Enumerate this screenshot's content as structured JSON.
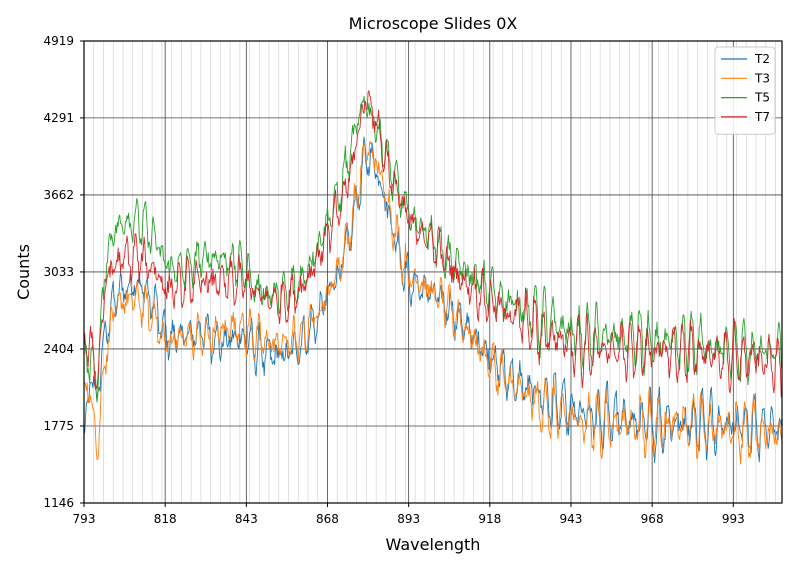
{
  "chart_data": {
    "type": "line",
    "title": "Microscope Slides 0X",
    "xlabel": "Wavelength",
    "ylabel": "Counts",
    "xlim": [
      793,
      1008
    ],
    "ylim": [
      1146,
      4919
    ],
    "xticks": [
      793,
      818,
      843,
      868,
      893,
      918,
      943,
      968,
      993
    ],
    "yticks": [
      1146,
      1775,
      2404,
      3033,
      3662,
      4291,
      4919
    ],
    "minor_grid_step": 3,
    "grid": true,
    "legend_position": "top-right",
    "series": [
      {
        "name": "T2",
        "color": "#1f77b4",
        "anchors": [
          [
            793,
            1680
          ],
          [
            795,
            2150
          ],
          [
            797,
            2020
          ],
          [
            800,
            2600
          ],
          [
            803,
            2850
          ],
          [
            806,
            2900
          ],
          [
            810,
            2950
          ],
          [
            815,
            2750
          ],
          [
            818,
            2500
          ],
          [
            822,
            2500
          ],
          [
            826,
            2520
          ],
          [
            830,
            2550
          ],
          [
            835,
            2450
          ],
          [
            840,
            2500
          ],
          [
            843,
            2500
          ],
          [
            846,
            2400
          ],
          [
            850,
            2350
          ],
          [
            855,
            2350
          ],
          [
            860,
            2450
          ],
          [
            865,
            2650
          ],
          [
            868,
            2850
          ],
          [
            872,
            3050
          ],
          [
            876,
            3450
          ],
          [
            879,
            3900
          ],
          [
            881,
            4000
          ],
          [
            884,
            3800
          ],
          [
            887,
            3500
          ],
          [
            890,
            3200
          ],
          [
            893,
            2950
          ],
          [
            897,
            2900
          ],
          [
            901,
            2850
          ],
          [
            905,
            2750
          ],
          [
            910,
            2600
          ],
          [
            915,
            2450
          ],
          [
            918,
            2350
          ],
          [
            923,
            2200
          ],
          [
            928,
            2100
          ],
          [
            933,
            2050
          ],
          [
            938,
            1950
          ],
          [
            943,
            1900
          ],
          [
            948,
            1850
          ],
          [
            953,
            1850
          ],
          [
            958,
            1850
          ],
          [
            963,
            1800
          ],
          [
            968,
            1800
          ],
          [
            973,
            1800
          ],
          [
            978,
            1800
          ],
          [
            983,
            1800
          ],
          [
            988,
            1800
          ],
          [
            993,
            1800
          ],
          [
            998,
            1780
          ],
          [
            1003,
            1760
          ],
          [
            1008,
            1750
          ]
        ]
      },
      {
        "name": "T3",
        "color": "#ff7f0e",
        "anchors": [
          [
            793,
            2100
          ],
          [
            795,
            2050
          ],
          [
            797,
            1600
          ],
          [
            800,
            2450
          ],
          [
            803,
            2750
          ],
          [
            806,
            2800
          ],
          [
            810,
            2800
          ],
          [
            815,
            2650
          ],
          [
            818,
            2450
          ],
          [
            822,
            2500
          ],
          [
            826,
            2500
          ],
          [
            830,
            2500
          ],
          [
            835,
            2550
          ],
          [
            840,
            2600
          ],
          [
            843,
            2550
          ],
          [
            846,
            2500
          ],
          [
            850,
            2450
          ],
          [
            855,
            2450
          ],
          [
            860,
            2500
          ],
          [
            865,
            2700
          ],
          [
            868,
            2850
          ],
          [
            872,
            3100
          ],
          [
            876,
            3500
          ],
          [
            879,
            3950
          ],
          [
            881,
            4050
          ],
          [
            884,
            3850
          ],
          [
            887,
            3550
          ],
          [
            890,
            3250
          ],
          [
            893,
            3000
          ],
          [
            897,
            2950
          ],
          [
            901,
            2850
          ],
          [
            905,
            2750
          ],
          [
            910,
            2600
          ],
          [
            915,
            2400
          ],
          [
            918,
            2300
          ],
          [
            923,
            2150
          ],
          [
            928,
            2050
          ],
          [
            933,
            1950
          ],
          [
            938,
            1900
          ],
          [
            943,
            1850
          ],
          [
            948,
            1800
          ],
          [
            953,
            1800
          ],
          [
            958,
            1800
          ],
          [
            963,
            1800
          ],
          [
            968,
            1780
          ],
          [
            973,
            1780
          ],
          [
            978,
            1780
          ],
          [
            983,
            1780
          ],
          [
            988,
            1760
          ],
          [
            993,
            1760
          ],
          [
            998,
            1740
          ],
          [
            1003,
            1720
          ],
          [
            1008,
            1700
          ]
        ]
      },
      {
        "name": "T5",
        "color": "#2ca02c",
        "anchors": [
          [
            793,
            2400
          ],
          [
            795,
            2300
          ],
          [
            797,
            2150
          ],
          [
            800,
            3200
          ],
          [
            803,
            3400
          ],
          [
            806,
            3450
          ],
          [
            810,
            3450
          ],
          [
            815,
            3300
          ],
          [
            818,
            3100
          ],
          [
            822,
            3050
          ],
          [
            826,
            3100
          ],
          [
            830,
            3150
          ],
          [
            835,
            3150
          ],
          [
            840,
            3100
          ],
          [
            843,
            3050
          ],
          [
            846,
            2900
          ],
          [
            850,
            2850
          ],
          [
            855,
            2850
          ],
          [
            860,
            2950
          ],
          [
            865,
            3250
          ],
          [
            868,
            3450
          ],
          [
            872,
            3700
          ],
          [
            876,
            4100
          ],
          [
            879,
            4450
          ],
          [
            881,
            4350
          ],
          [
            884,
            4150
          ],
          [
            887,
            3900
          ],
          [
            890,
            3700
          ],
          [
            893,
            3500
          ],
          [
            897,
            3400
          ],
          [
            901,
            3300
          ],
          [
            905,
            3150
          ],
          [
            910,
            3050
          ],
          [
            915,
            2950
          ],
          [
            918,
            2900
          ],
          [
            923,
            2800
          ],
          [
            928,
            2750
          ],
          [
            933,
            2650
          ],
          [
            938,
            2600
          ],
          [
            943,
            2550
          ],
          [
            948,
            2500
          ],
          [
            953,
            2500
          ],
          [
            958,
            2500
          ],
          [
            963,
            2500
          ],
          [
            968,
            2450
          ],
          [
            973,
            2450
          ],
          [
            978,
            2450
          ],
          [
            983,
            2450
          ],
          [
            988,
            2400
          ],
          [
            993,
            2400
          ],
          [
            998,
            2380
          ],
          [
            1003,
            2380
          ],
          [
            1008,
            2380
          ]
        ]
      },
      {
        "name": "T7",
        "color": "#d62728",
        "anchors": [
          [
            793,
            2450
          ],
          [
            795,
            2450
          ],
          [
            797,
            2150
          ],
          [
            800,
            3000
          ],
          [
            803,
            3100
          ],
          [
            806,
            3150
          ],
          [
            810,
            3150
          ],
          [
            815,
            3050
          ],
          [
            818,
            2900
          ],
          [
            822,
            2900
          ],
          [
            826,
            2950
          ],
          [
            830,
            2950
          ],
          [
            835,
            2950
          ],
          [
            840,
            2950
          ],
          [
            843,
            2950
          ],
          [
            846,
            2850
          ],
          [
            850,
            2800
          ],
          [
            855,
            2800
          ],
          [
            860,
            2900
          ],
          [
            865,
            3150
          ],
          [
            868,
            3350
          ],
          [
            872,
            3550
          ],
          [
            876,
            3950
          ],
          [
            879,
            4400
          ],
          [
            881,
            4450
          ],
          [
            884,
            4150
          ],
          [
            887,
            3850
          ],
          [
            890,
            3650
          ],
          [
            893,
            3450
          ],
          [
            897,
            3350
          ],
          [
            901,
            3250
          ],
          [
            905,
            3100
          ],
          [
            910,
            2950
          ],
          [
            915,
            2850
          ],
          [
            918,
            2800
          ],
          [
            923,
            2700
          ],
          [
            928,
            2650
          ],
          [
            933,
            2550
          ],
          [
            938,
            2500
          ],
          [
            943,
            2450
          ],
          [
            948,
            2400
          ],
          [
            953,
            2400
          ],
          [
            958,
            2400
          ],
          [
            963,
            2400
          ],
          [
            968,
            2380
          ],
          [
            973,
            2380
          ],
          [
            978,
            2380
          ],
          [
            983,
            2380
          ],
          [
            988,
            2350
          ],
          [
            993,
            2330
          ],
          [
            998,
            2330
          ],
          [
            1003,
            2300
          ],
          [
            1008,
            2300
          ]
        ]
      }
    ]
  }
}
